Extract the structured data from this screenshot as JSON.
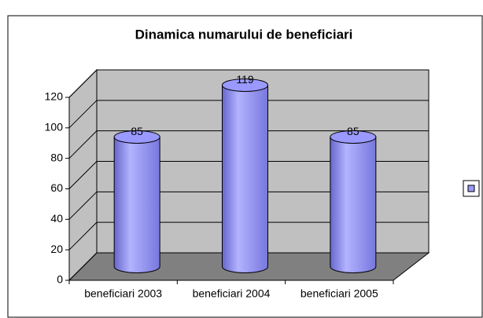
{
  "chart_data": {
    "type": "bar",
    "title": "Dinamica numarului de beneficiari",
    "categories": [
      "beneficiari 2003",
      "beneficiari 2004",
      "beneficiari 2005"
    ],
    "values": [
      85,
      119,
      85
    ],
    "color": "#9999ff",
    "ylim": [
      0,
      120
    ],
    "yticks": [
      0,
      20,
      40,
      60,
      80,
      100,
      120
    ],
    "grid": true
  }
}
